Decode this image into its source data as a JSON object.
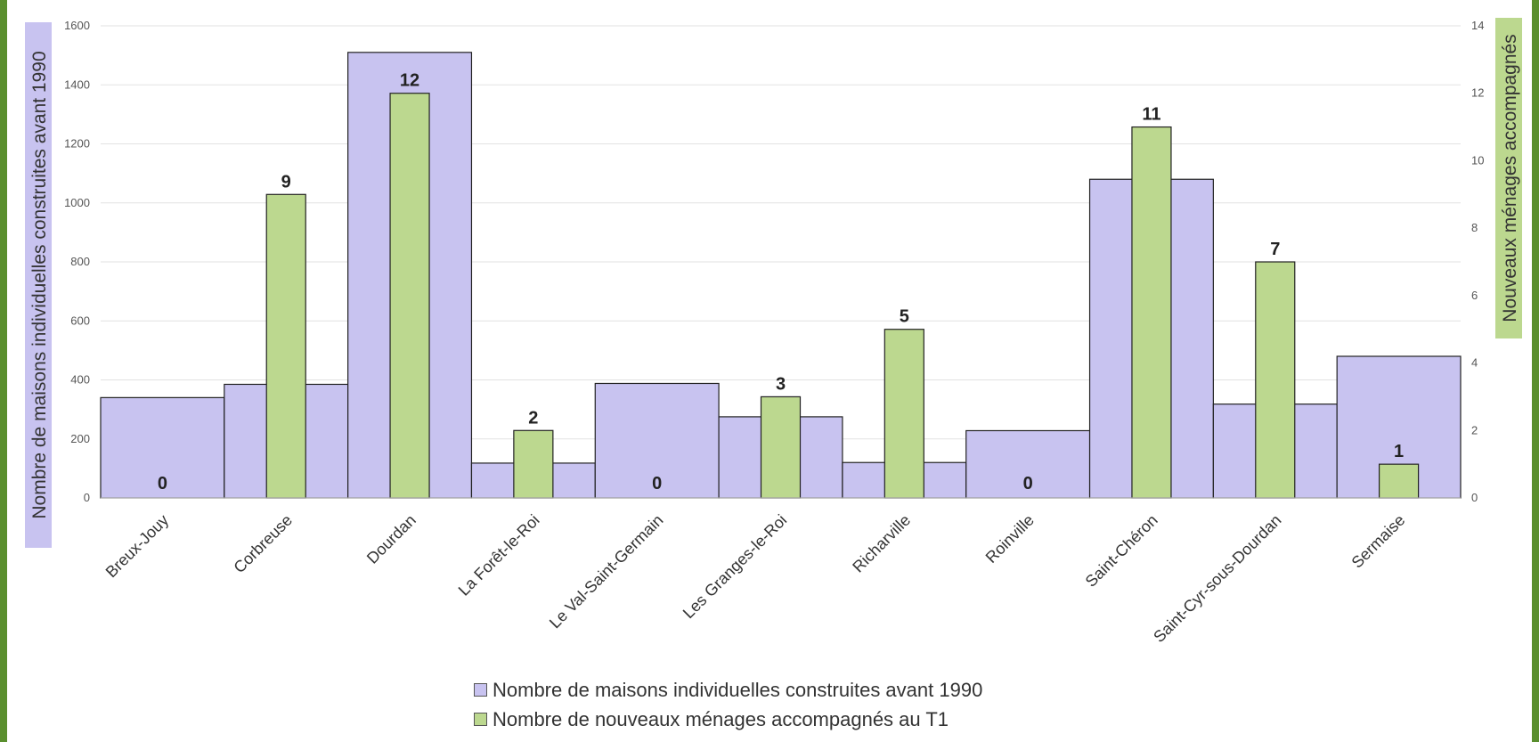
{
  "chart_data": {
    "type": "bar",
    "categories": [
      "Breux-Jouy",
      "Corbreuse",
      "Dourdan",
      "La Forêt-le-Roi",
      "Le Val-Saint-Germain",
      "Les Granges-le-Roi",
      "Richarville",
      "Roinville",
      "Saint-Chéron",
      "Saint-Cyr-sous-Dourdan",
      "Sermaise"
    ],
    "series": [
      {
        "name": "Nombre de maisons individuelles construites avant 1990",
        "axis": "left",
        "color": "#c8c3f0",
        "values": [
          340,
          385,
          1510,
          118,
          388,
          275,
          120,
          228,
          1080,
          318,
          480
        ]
      },
      {
        "name": "Nombre de nouveaux ménages accompagnés au T1",
        "axis": "right",
        "color": "#bcd88f",
        "values": [
          0,
          9,
          12,
          2,
          0,
          3,
          5,
          0,
          11,
          7,
          1
        ],
        "data_labels": [
          "0",
          "9",
          "12",
          "2",
          "0",
          "3",
          "5",
          "0",
          "11",
          "7",
          "1"
        ]
      }
    ],
    "y_left": {
      "label": "Nombre de maisons individuelles construites avant 1990",
      "range": [
        0,
        1600
      ],
      "ticks": [
        "0",
        "200",
        "400",
        "600",
        "800",
        "1000",
        "1200",
        "1400",
        "1600"
      ],
      "label_bg": "#c8c3f0"
    },
    "y_right": {
      "label": "Nouveaux ménages accompagnés",
      "range": [
        0,
        14
      ],
      "ticks": [
        "0",
        "2",
        "4",
        "6",
        "8",
        "10",
        "12",
        "14"
      ],
      "label_bg": "#bcd88f"
    },
    "grid": true,
    "legend_position": "bottom",
    "frame_color": "#5a8f2e"
  }
}
